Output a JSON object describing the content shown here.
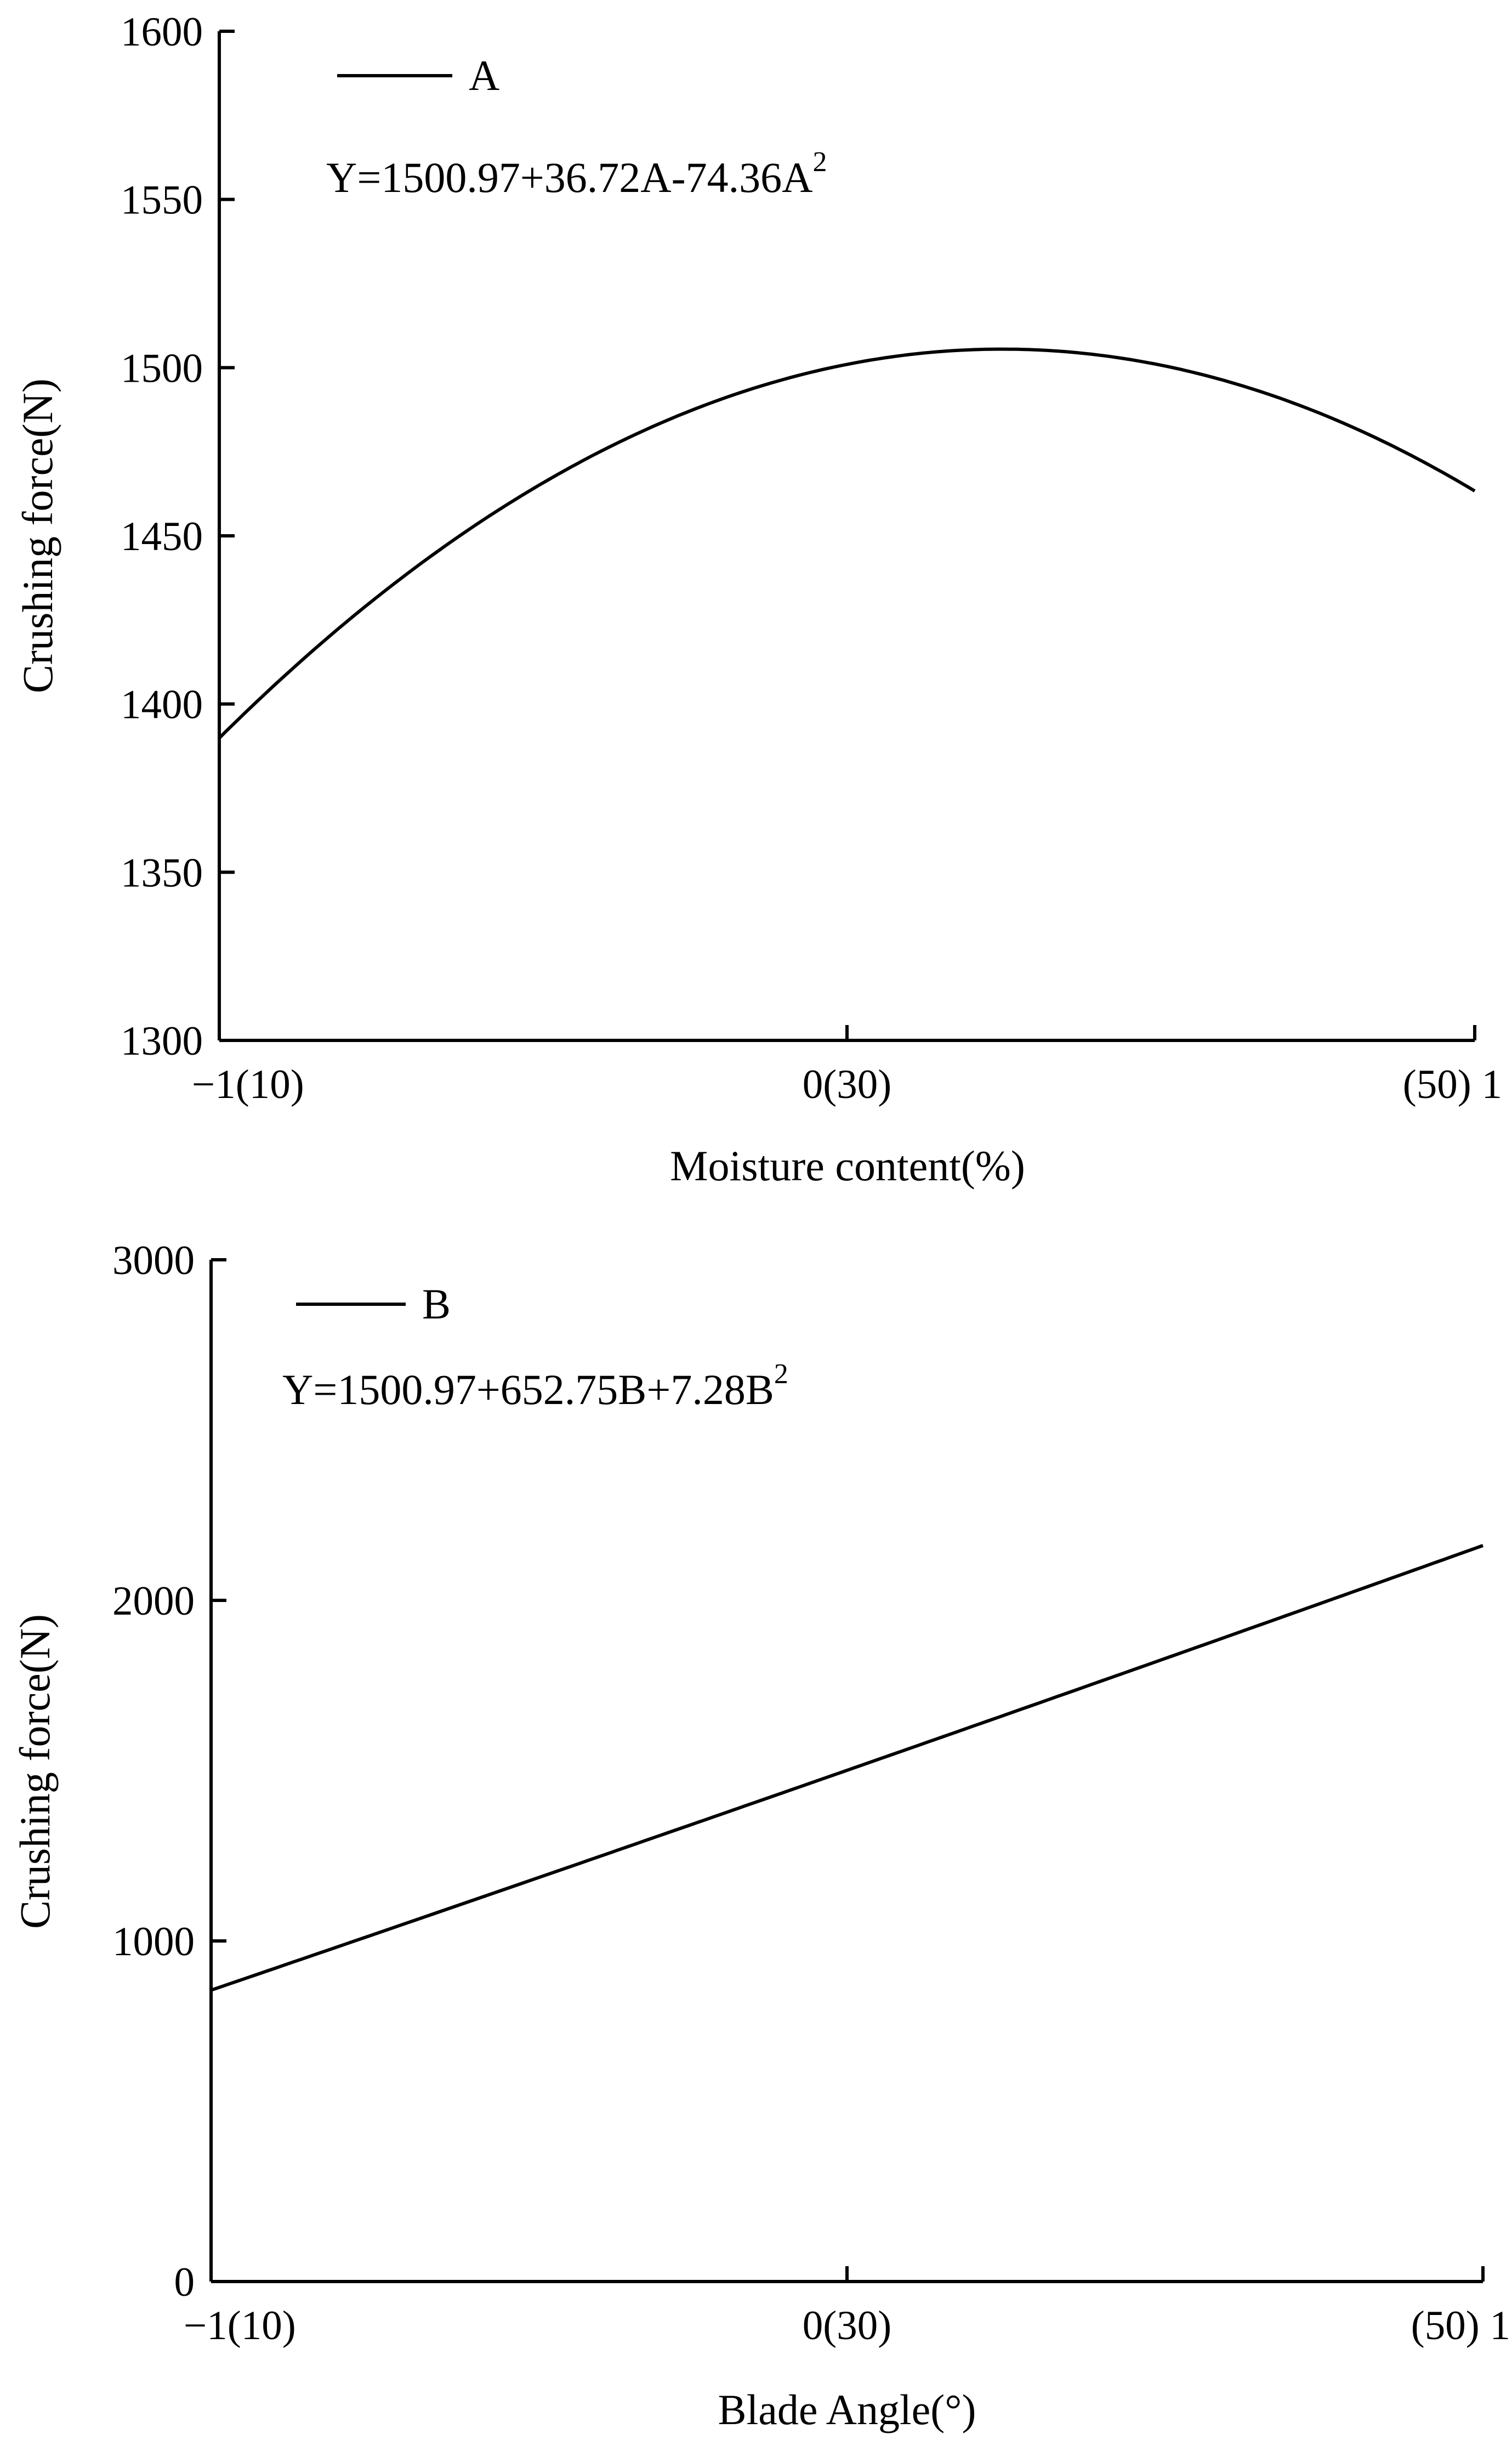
{
  "chart_data": [
    {
      "type": "line",
      "xlabel": "Moisture content(%)",
      "ylabel": "Crushing force(N)",
      "xlim": [
        -1,
        1
      ],
      "ylim": [
        1300,
        1600
      ],
      "yticks": [
        "1300",
        "1350",
        "1400",
        "1450",
        "1500",
        "1550",
        "1600"
      ],
      "xticks": [
        {
          "value": -1,
          "label": "−1(10)"
        },
        {
          "value": 0,
          "label": "0(30)"
        },
        {
          "value": 1,
          "label": "(50) 1"
        }
      ],
      "series": [
        {
          "name": "A",
          "equation": {
            "main": "Y=1500.97+36.72A-74.36A",
            "sup": "2"
          },
          "coefficients": {
            "c0": 1500.97,
            "c1": 36.72,
            "c2": -74.36
          }
        }
      ],
      "legend_position": "top-left",
      "grid": false
    },
    {
      "type": "line",
      "xlabel": "Blade Angle(°)",
      "ylabel": "Crushing force(N)",
      "xlim": [
        -1,
        1
      ],
      "ylim": [
        0,
        3000
      ],
      "yticks": [
        "0",
        "1000",
        "2000",
        "3000"
      ],
      "xticks": [
        {
          "value": -1,
          "label": "−1(10)"
        },
        {
          "value": 0,
          "label": "0(30)"
        },
        {
          "value": 1,
          "label": "(50) 1"
        }
      ],
      "series": [
        {
          "name": "B",
          "equation": {
            "main": "Y=1500.97+652.75B+7.28B",
            "sup": "2"
          },
          "coefficients": {
            "c0": 1500.97,
            "c1": 652.75,
            "c2": 7.28
          }
        }
      ],
      "legend_position": "top-left",
      "grid": false
    }
  ]
}
